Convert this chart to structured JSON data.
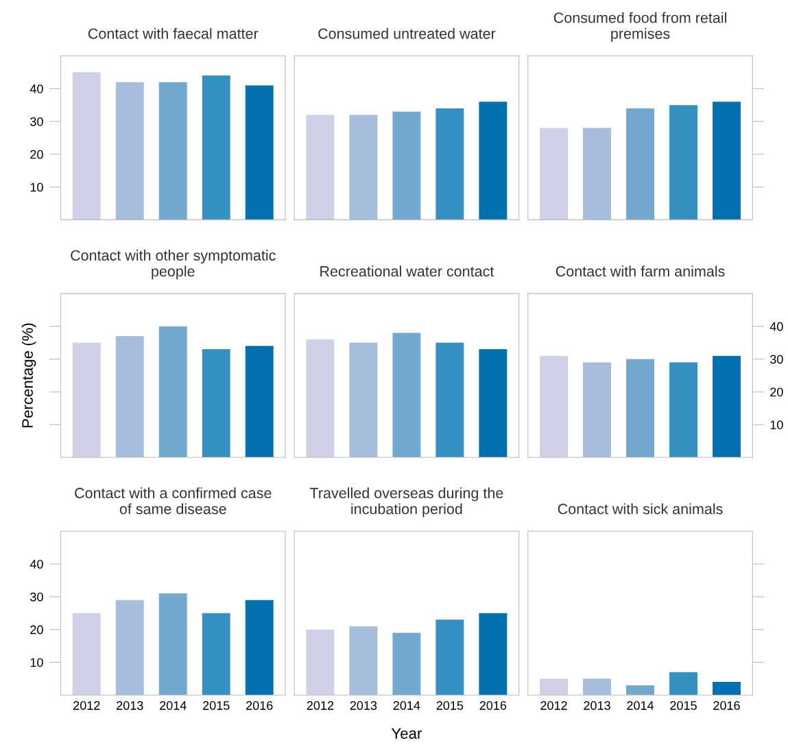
{
  "chart_data": [
    {
      "type": "bar",
      "title": "Contact with faecal matter",
      "categories": [
        "2012",
        "2013",
        "2014",
        "2015",
        "2016"
      ],
      "values": [
        45,
        42,
        42,
        44,
        41
      ],
      "colors": [
        "#d0d1e6",
        "#a6bddb",
        "#74a9cf",
        "#3690c0",
        "#0570b0"
      ],
      "ylim": [
        0,
        50
      ],
      "yticks": [
        10,
        20,
        30,
        40
      ],
      "tick_labels": "y"
    },
    {
      "type": "bar",
      "title": "Consumed untreated water",
      "categories": [
        "2012",
        "2013",
        "2014",
        "2015",
        "2016"
      ],
      "values": [
        32,
        32,
        33,
        34,
        36
      ],
      "colors": [
        "#d0d1e6",
        "#a6bddb",
        "#74a9cf",
        "#3690c0",
        "#0570b0"
      ],
      "ylim": [
        0,
        50
      ],
      "yticks": [
        10,
        20,
        30,
        40
      ],
      "tick_labels": false
    },
    {
      "type": "bar",
      "title": "Consumed food from retail premises",
      "categories": [
        "2012",
        "2013",
        "2014",
        "2015",
        "2016"
      ],
      "values": [
        28,
        28,
        34,
        35,
        36
      ],
      "colors": [
        "#d0d1e6",
        "#a6bddb",
        "#74a9cf",
        "#3690c0",
        "#0570b0"
      ],
      "ylim": [
        0,
        50
      ],
      "yticks": [
        10,
        20,
        30,
        40
      ],
      "tick_labels": false
    },
    {
      "type": "bar",
      "title": "Contact with other symptomatic people",
      "ylabel": "Percentage (%)",
      "categories": [
        "2012",
        "2013",
        "2014",
        "2015",
        "2016"
      ],
      "values": [
        35,
        37,
        40,
        33,
        34
      ],
      "colors": [
        "#d0d1e6",
        "#a6bddb",
        "#74a9cf",
        "#3690c0",
        "#0570b0"
      ],
      "ylim": [
        0,
        50
      ],
      "yticks": [
        10,
        20,
        30,
        40
      ],
      "tick_labels": false
    },
    {
      "type": "bar",
      "title": "Recreational water contact",
      "categories": [
        "2012",
        "2013",
        "2014",
        "2015",
        "2016"
      ],
      "values": [
        36,
        35,
        38,
        35,
        33
      ],
      "colors": [
        "#d0d1e6",
        "#a6bddb",
        "#74a9cf",
        "#3690c0",
        "#0570b0"
      ],
      "ylim": [
        0,
        50
      ],
      "yticks": [
        10,
        20,
        30,
        40
      ],
      "tick_labels": false
    },
    {
      "type": "bar",
      "title": "Contact with farm animals",
      "categories": [
        "2012",
        "2013",
        "2014",
        "2015",
        "2016"
      ],
      "values": [
        31,
        29,
        30,
        29,
        31
      ],
      "colors": [
        "#d0d1e6",
        "#a6bddb",
        "#74a9cf",
        "#3690c0",
        "#0570b0"
      ],
      "ylim": [
        0,
        50
      ],
      "yticks": [
        10,
        20,
        30,
        40
      ],
      "tick_labels": "y"
    },
    {
      "type": "bar",
      "title": "Contact with a confirmed case of same disease",
      "categories": [
        "2012",
        "2013",
        "2014",
        "2015",
        "2016"
      ],
      "values": [
        25,
        29,
        31,
        25,
        29
      ],
      "colors": [
        "#d0d1e6",
        "#a6bddb",
        "#74a9cf",
        "#3690c0",
        "#0570b0"
      ],
      "ylim": [
        0,
        50
      ],
      "yticks": [
        10,
        20,
        30,
        40
      ]
    },
    {
      "type": "bar",
      "title": "Travelled overseas during the incubation period",
      "xlabel": "Year",
      "categories": [
        "2012",
        "2013",
        "2014",
        "2015",
        "2016"
      ],
      "values": [
        20,
        21,
        19,
        23,
        25
      ],
      "colors": [
        "#d0d1e6",
        "#a6bddb",
        "#74a9cf",
        "#3690c0",
        "#0570b0"
      ],
      "ylim": [
        0,
        50
      ],
      "yticks": [
        10,
        20,
        30,
        40
      ],
      "tick_labels": "x"
    },
    {
      "type": "bar",
      "title": "Contact with sick animals",
      "categories": [
        "2012",
        "2013",
        "2014",
        "2015",
        "2016"
      ],
      "values": [
        5,
        5,
        3,
        7,
        4
      ],
      "colors": [
        "#d0d1e6",
        "#a6bddb",
        "#74a9cf",
        "#3690c0",
        "#0570b0"
      ],
      "ylim": [
        0,
        50
      ],
      "yticks": [
        10,
        20,
        30,
        40
      ],
      "tick_labels": "x"
    }
  ]
}
